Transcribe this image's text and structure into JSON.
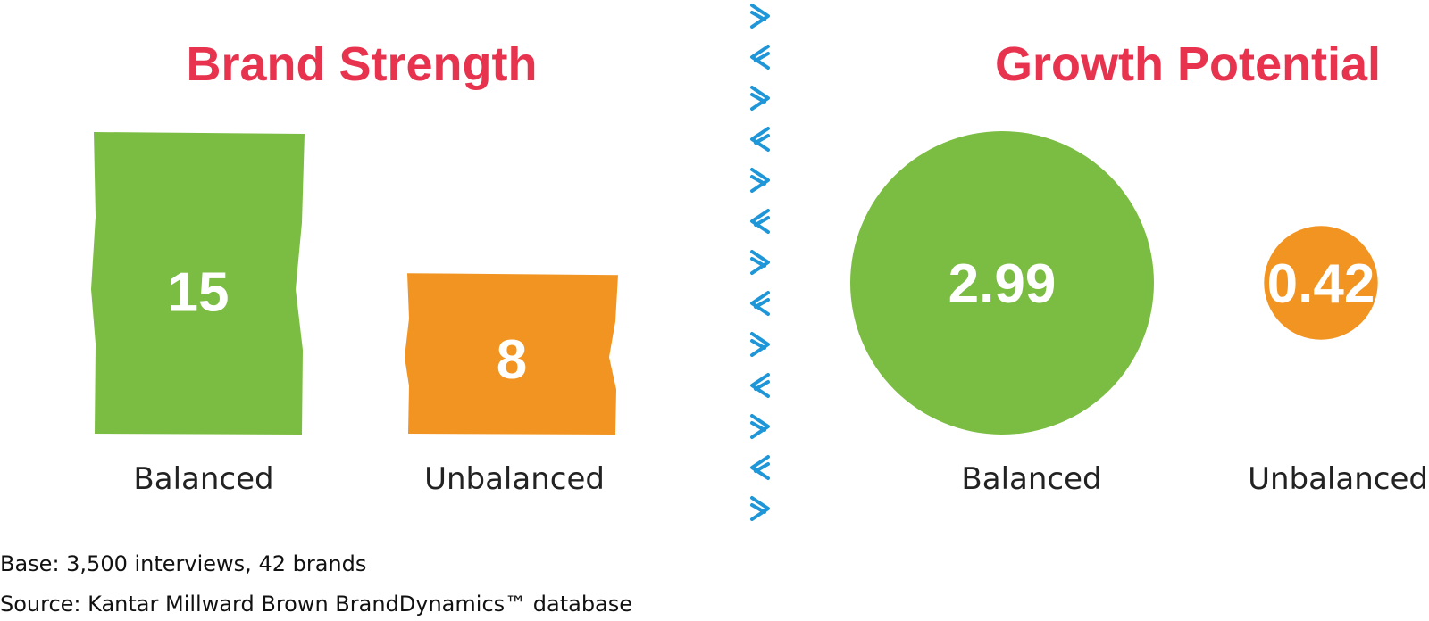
{
  "colors": {
    "title": "#E8334F",
    "balanced": "#7BBD42",
    "unbalanced": "#F29421",
    "divider": "#1E96D8",
    "label_dark": "#111111"
  },
  "chart_data": [
    {
      "type": "bar",
      "title": "Brand Strength",
      "categories": [
        "Balanced",
        "Unbalanced"
      ],
      "values": [
        15,
        8
      ],
      "value_labels": [
        "15",
        "8"
      ]
    },
    {
      "type": "bubble",
      "title": "Growth Potential",
      "categories": [
        "Balanced",
        "Unbalanced"
      ],
      "values": [
        2.99,
        0.42
      ],
      "value_labels": [
        "2.99",
        "0.42"
      ]
    }
  ],
  "divider": {
    "icon": "zigzag-chevron-icon",
    "glyphs": [
      ">",
      "<",
      ">",
      "<",
      ">",
      "<",
      ">",
      "<",
      ">",
      "<",
      ">",
      "<",
      ">"
    ]
  },
  "footnotes": {
    "base": "Base: 3,500 interviews, 42 brands",
    "source": "Source: Kantar Millward Brown BrandDynamics™ database"
  }
}
